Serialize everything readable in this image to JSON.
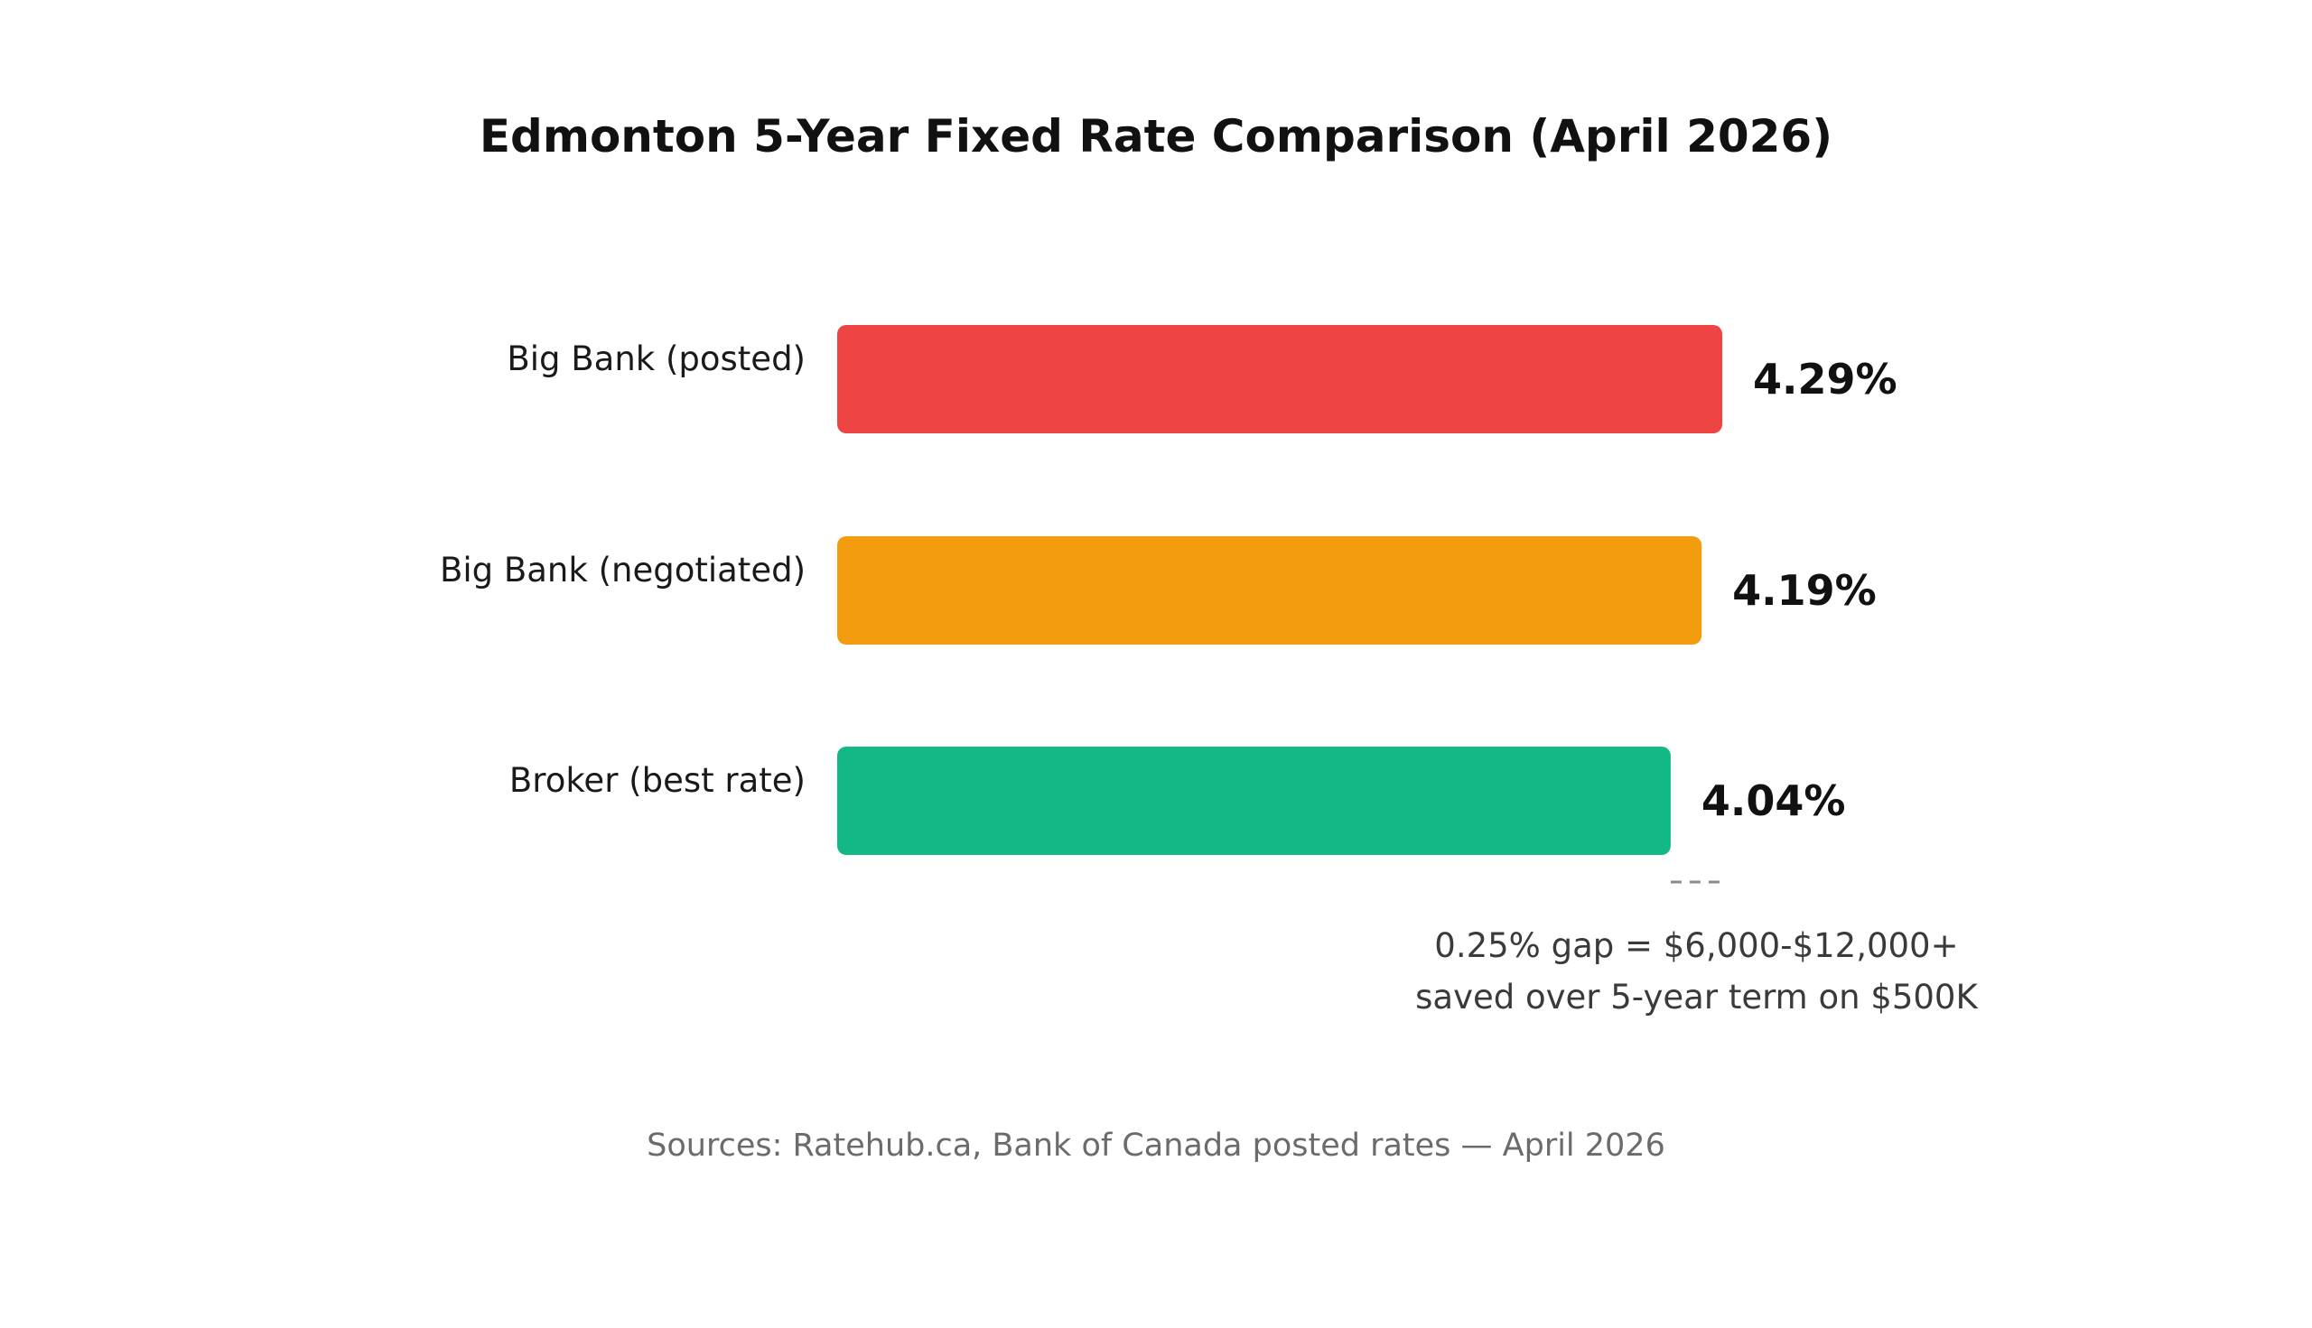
{
  "chart_data": {
    "type": "bar",
    "orientation": "horizontal",
    "title": "Edmonton 5-Year Fixed Rate Comparison (April 2026)",
    "categories": [
      "Big Bank (posted)",
      "Big Bank (negotiated)",
      "Broker (best rate)"
    ],
    "values": [
      4.29,
      4.19,
      4.04
    ],
    "value_labels": [
      "4.29%",
      "4.19%",
      "4.04%"
    ],
    "colors": [
      "#EF4444",
      "#F39C0E",
      "#12B886"
    ],
    "annotation": {
      "lines": [
        "0.25% gap = $6,000-$12,000+",
        "saved over 5-year term on $500K"
      ],
      "bracket_from": 4.04,
      "bracket_to": 4.29
    },
    "source": "Sources: Ratehub.ca, Bank of Canada posted rates — April 2026",
    "grid": false,
    "legend": "none"
  }
}
